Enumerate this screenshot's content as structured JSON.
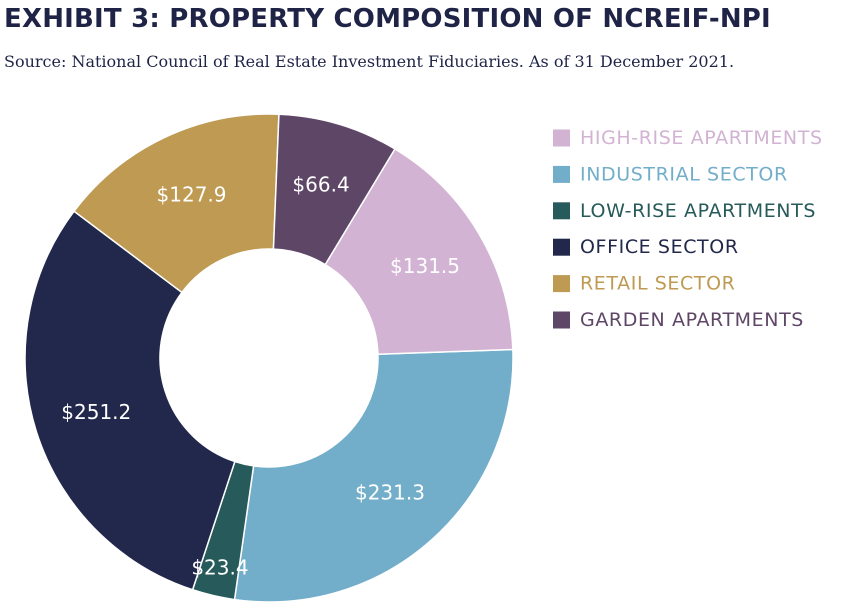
{
  "title": "EXHIBIT 3: PROPERTY COMPOSITION OF NCREIF-NPI",
  "subtitle": "Source: National Council of Real Estate Investment Fiduciaries. As of 31 December 2021.",
  "chart_data": {
    "type": "pie",
    "variant": "donut",
    "start_angle_deg": 88,
    "direction": "clockwise",
    "legend_position": "right",
    "slices": [
      {
        "name": "INDUSTRIAL SECTOR",
        "value": 231.3,
        "label": "$231.3",
        "color": "#72aec9"
      },
      {
        "name": "LOW-RISE APARTMENTS",
        "value": 23.4,
        "label": "$23.4",
        "color": "#275a5a"
      },
      {
        "name": "OFFICE SECTOR",
        "value": 251.2,
        "label": "$251.2",
        "color": "#22284b"
      },
      {
        "name": "RETAIL SECTOR",
        "value": 127.9,
        "label": "$127.9",
        "color": "#be9a52"
      },
      {
        "name": "GARDEN APARTMENTS",
        "value": 66.4,
        "label": "$66.4",
        "color": "#5e4667"
      },
      {
        "name": "HIGH-RISE APARTMENTS",
        "value": 131.5,
        "label": "$131.5",
        "color": "#d2b3d3"
      }
    ],
    "legend": [
      {
        "label": "HIGH-RISE APARTMENTS",
        "color": "#d2b3d3"
      },
      {
        "label": "INDUSTRIAL SECTOR",
        "color": "#72aec9"
      },
      {
        "label": "LOW-RISE APARTMENTS",
        "color": "#275a5a"
      },
      {
        "label": "OFFICE SECTOR",
        "color": "#22284b"
      },
      {
        "label": "RETAIL SECTOR",
        "color": "#be9a52"
      },
      {
        "label": "GARDEN APARTMENTS",
        "color": "#5e4667"
      }
    ]
  }
}
